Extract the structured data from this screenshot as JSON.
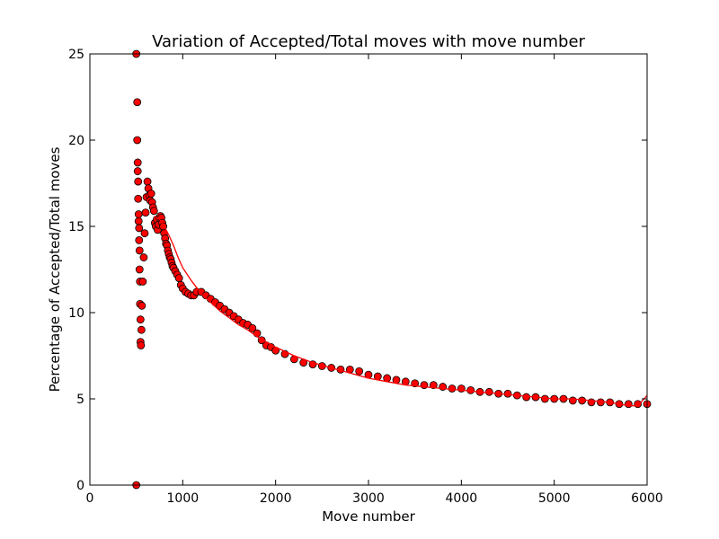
{
  "chart_data": {
    "type": "scatter",
    "title": "Variation of Accepted/Total moves with move number",
    "xlabel": "Move number",
    "ylabel": "Percentage of Accepted/Total moves",
    "xlim": [
      0,
      6000
    ],
    "ylim": [
      0,
      25
    ],
    "xticks": [
      0,
      1000,
      2000,
      3000,
      4000,
      5000,
      6000
    ],
    "yticks": [
      0,
      5,
      10,
      15,
      20,
      25
    ],
    "grid": false,
    "legend": "none",
    "colors": {
      "marker_fill": "#ff0000",
      "marker_edge": "#000000",
      "fit_line": "#ff0000"
    },
    "series": [
      {
        "kind": "points",
        "x": [
          500,
          500,
          510,
          510,
          515,
          515,
          520,
          520,
          525,
          525,
          530,
          530,
          535,
          535,
          540,
          540,
          545,
          545,
          550,
          555,
          560,
          570,
          580,
          590,
          600,
          610,
          620,
          630,
          640,
          650,
          660,
          670,
          680,
          690,
          700,
          710,
          720,
          730,
          740,
          750,
          760,
          770,
          780,
          790,
          800,
          810,
          820,
          830,
          840,
          850,
          860,
          870,
          880,
          890,
          900,
          920,
          940,
          960,
          980,
          1000,
          1030,
          1060,
          1090,
          1120,
          1150,
          1200,
          1250,
          1300,
          1350,
          1400,
          1450,
          1500,
          1550,
          1600,
          1650,
          1700,
          1750,
          1800,
          1850,
          1900,
          1950,
          2000,
          2100,
          2200,
          2300,
          2400,
          2500,
          2600,
          2700,
          2800,
          2900,
          3000,
          3100,
          3200,
          3300,
          3400,
          3500,
          3600,
          3700,
          3800,
          3900,
          4000,
          4100,
          4200,
          4300,
          4400,
          4500,
          4600,
          4700,
          4800,
          4900,
          5000,
          5100,
          5200,
          5300,
          5400,
          5500,
          5600,
          5700,
          5800,
          5900,
          6000
        ],
        "y": [
          25.0,
          0.0,
          22.2,
          20.0,
          18.7,
          18.2,
          17.6,
          16.6,
          15.7,
          15.3,
          14.9,
          14.2,
          13.6,
          12.5,
          11.8,
          10.5,
          9.6,
          8.3,
          8.1,
          9.0,
          10.4,
          11.8,
          13.2,
          14.6,
          15.8,
          16.7,
          17.6,
          17.2,
          16.8,
          16.5,
          16.9,
          16.4,
          16.1,
          15.9,
          15.2,
          15.0,
          15.4,
          14.8,
          15.1,
          15.5,
          15.6,
          15.5,
          15.2,
          15.0,
          14.6,
          14.3,
          14.0,
          13.9,
          13.6,
          13.4,
          13.2,
          13.1,
          12.9,
          12.7,
          12.6,
          12.4,
          12.2,
          12.0,
          11.6,
          11.4,
          11.2,
          11.1,
          11.0,
          11.0,
          11.2,
          11.2,
          11.0,
          10.8,
          10.6,
          10.4,
          10.2,
          10.0,
          9.8,
          9.6,
          9.4,
          9.3,
          9.1,
          8.8,
          8.4,
          8.1,
          8.0,
          7.8,
          7.6,
          7.3,
          7.1,
          7.0,
          6.9,
          6.8,
          6.7,
          6.7,
          6.6,
          6.4,
          6.3,
          6.2,
          6.1,
          6.0,
          5.9,
          5.8,
          5.8,
          5.7,
          5.6,
          5.6,
          5.5,
          5.4,
          5.4,
          5.3,
          5.3,
          5.2,
          5.1,
          5.1,
          5.0,
          5.0,
          5.0,
          4.9,
          4.9,
          4.8,
          4.8,
          4.8,
          4.7,
          4.7,
          4.7,
          4.7
        ]
      },
      {
        "kind": "line",
        "x": [
          700,
          750,
          800,
          850,
          900,
          950,
          1000,
          1100,
          1200,
          1300,
          1400,
          1500,
          1600,
          1700,
          1800,
          1900,
          2000,
          2200,
          2400,
          2600,
          2800,
          3000,
          3200,
          3400,
          3600,
          3800,
          4000,
          4200,
          4400,
          4600,
          4800,
          5000,
          5200,
          5400,
          5600,
          5800,
          5900,
          6000
        ],
        "y": [
          15.6,
          15.4,
          15.0,
          14.5,
          13.9,
          13.2,
          12.6,
          11.8,
          11.1,
          10.6,
          10.1,
          9.7,
          9.3,
          9.0,
          8.6,
          8.3,
          8.0,
          7.5,
          7.1,
          6.8,
          6.5,
          6.2,
          6.0,
          5.8,
          5.7,
          5.6,
          5.5,
          5.4,
          5.3,
          5.2,
          5.1,
          5.0,
          5.0,
          4.9,
          4.8,
          4.6,
          4.6,
          5.2
        ]
      }
    ]
  }
}
